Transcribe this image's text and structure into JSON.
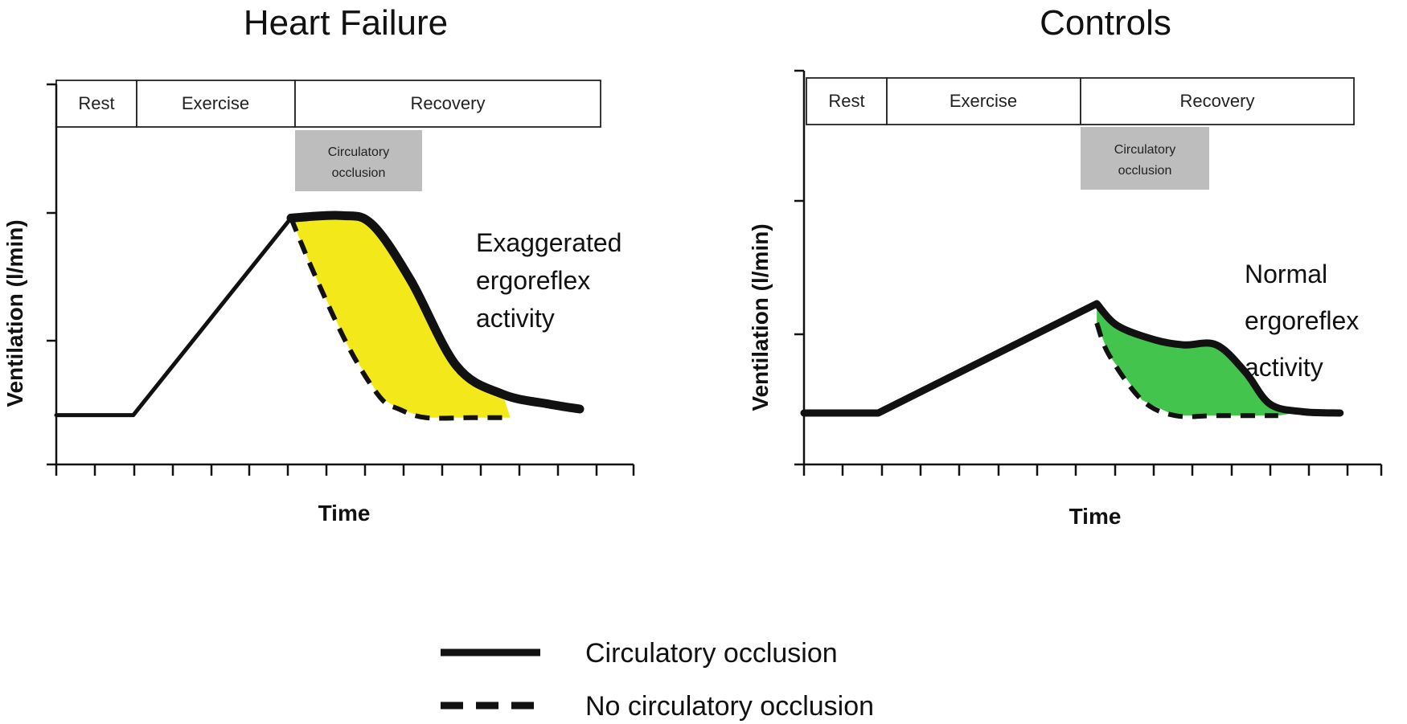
{
  "legend": {
    "items": [
      {
        "label": "Circulatory occlusion",
        "style": "solid"
      },
      {
        "label": "No circulatory occlusion",
        "style": "dashed"
      }
    ]
  },
  "chart_data": [
    {
      "type": "line",
      "title": "Heart Failure",
      "xlabel": "Time",
      "ylabel": "Ventilation (l/min)",
      "phases": [
        "Rest",
        "Exercise",
        "Recovery"
      ],
      "occlusion_label": "Circulatory occlusion",
      "annotation": [
        "Exaggerated",
        "ergoreflex",
        "activity"
      ],
      "fill_color": "#f2e600",
      "xlim": [
        0,
        15
      ],
      "ylim": [
        0,
        3
      ],
      "series": [
        {
          "name": "Circulatory occlusion",
          "style": "solid",
          "x": [
            0,
            2,
            6.1,
            7.4,
            8.2,
            9.2,
            10.4,
            11.6,
            12.8,
            13.6
          ],
          "y": [
            0.4,
            0.4,
            2.0,
            2.02,
            1.95,
            1.5,
            0.8,
            0.57,
            0.49,
            0.45
          ]
        },
        {
          "name": "No circulatory occlusion",
          "style": "dashed",
          "x": [
            6.1,
            6.7,
            7.6,
            8.4,
            8.9,
            9.6,
            10.8,
            11.8
          ],
          "y": [
            2.0,
            1.55,
            0.95,
            0.55,
            0.45,
            0.38,
            0.38,
            0.38
          ]
        }
      ]
    },
    {
      "type": "line",
      "title": "Controls",
      "xlabel": "Time",
      "ylabel": "Ventilation (l/min)",
      "phases": [
        "Rest",
        "Exercise",
        "Recovery"
      ],
      "occlusion_label": "Circulatory occlusion",
      "annotation": [
        "Normal",
        "ergoreflex",
        "activity"
      ],
      "fill_color": "#2fbf3a",
      "xlim": [
        0,
        14
      ],
      "ylim": [
        0,
        3
      ],
      "series": [
        {
          "name": "Circulatory occlusion",
          "style": "solid",
          "x": [
            0,
            1.8,
            7.1,
            7.6,
            8.5,
            9.2,
            10.0,
            10.7,
            11.3,
            12.1,
            13.0
          ],
          "y": [
            0.4,
            0.4,
            1.25,
            1.08,
            0.97,
            0.93,
            0.93,
            0.72,
            0.47,
            0.41,
            0.4
          ]
        },
        {
          "name": "No circulatory occlusion",
          "style": "dashed",
          "x": [
            7.1,
            7.4,
            8.2,
            9.0,
            10.0,
            11.5
          ],
          "y": [
            1.1,
            0.85,
            0.5,
            0.38,
            0.38,
            0.38
          ]
        }
      ]
    }
  ]
}
